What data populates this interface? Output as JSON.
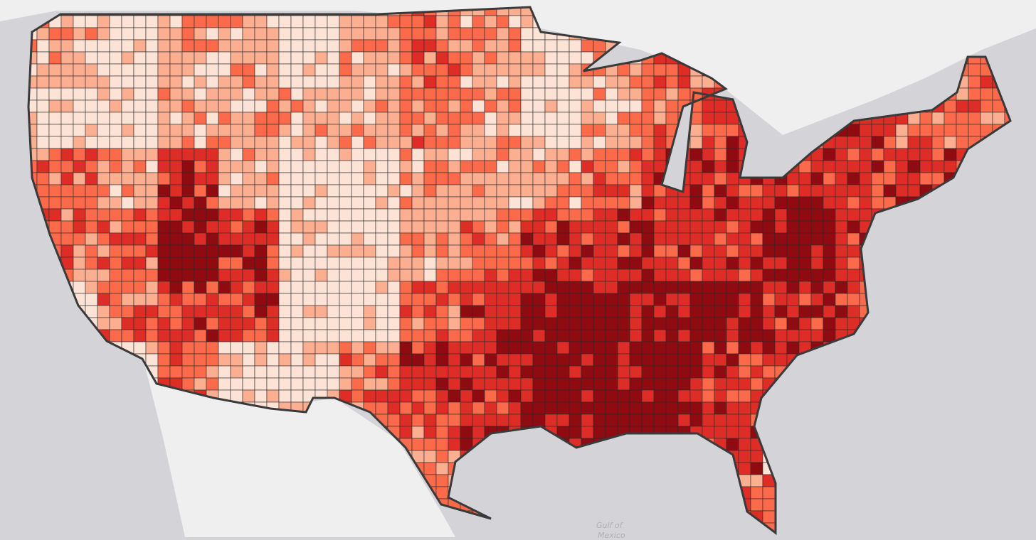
{
  "map": {
    "basemap": {
      "ocean_color": "#d4d4d8",
      "land_color": "#efeff0",
      "border_color": "#3a3a3a"
    },
    "labels": {
      "gulf": "Gulf of",
      "gulf_line2": "Mexico"
    },
    "class_colors": [
      "#fde3d6",
      "#fcae91",
      "#fb6a4a",
      "#de2d26",
      "#8f0b12"
    ],
    "regional_class_levels": [
      [
        1,
        0,
        1,
        1,
        0,
        1,
        2,
        1,
        0,
        1,
        2,
        2,
        0,
        0,
        0,
        2
      ],
      [
        0,
        0,
        1,
        1,
        1,
        1,
        2,
        1,
        0,
        1,
        2,
        3,
        3,
        3,
        2,
        2
      ],
      [
        2,
        1,
        3,
        1,
        0,
        0,
        1,
        1,
        1,
        2,
        3,
        3,
        3,
        3,
        3,
        2
      ],
      [
        2,
        2,
        4,
        3,
        0,
        0,
        1,
        2,
        3,
        3,
        3,
        3,
        4,
        3,
        2,
        0
      ],
      [
        0,
        2,
        3,
        3,
        0,
        0,
        2,
        3,
        4,
        4,
        4,
        4,
        3,
        3,
        0,
        0
      ],
      [
        0,
        0,
        2,
        0,
        0,
        2,
        3,
        3,
        4,
        4,
        4,
        3,
        3,
        0,
        0,
        0
      ],
      [
        0,
        0,
        0,
        0,
        1,
        2,
        2,
        3,
        4,
        4,
        4,
        3,
        0,
        0,
        0,
        0
      ],
      [
        0,
        0,
        0,
        0,
        0,
        0,
        2,
        2,
        0,
        0,
        0,
        2,
        2,
        0,
        0,
        0
      ]
    ]
  }
}
